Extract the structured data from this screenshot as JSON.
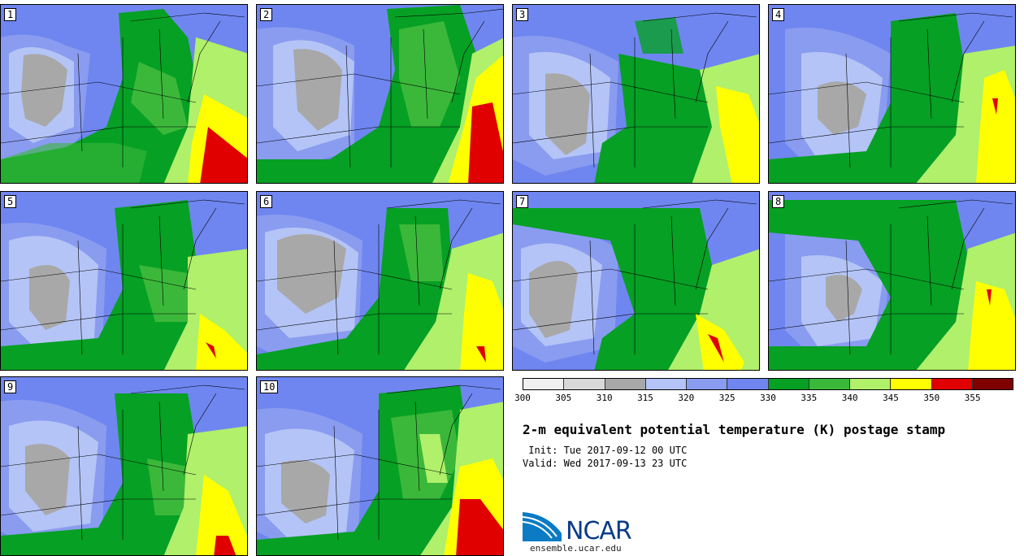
{
  "panels": [
    "1",
    "2",
    "3",
    "4",
    "5",
    "6",
    "7",
    "8",
    "9",
    "10"
  ],
  "colorbar": {
    "colors": [
      "#f0f0f0",
      "#d8d8d8",
      "#a8a8a8",
      "#b4c4f6",
      "#8a9cf0",
      "#6f86f0",
      "#06a024",
      "#3bb83a",
      "#b0f06a",
      "#ffff00",
      "#e00000",
      "#7f0000"
    ],
    "ticks": [
      "300",
      "305",
      "310",
      "315",
      "320",
      "325",
      "330",
      "335",
      "340",
      "345",
      "350",
      "355"
    ]
  },
  "title": "2-m equivalent potential temperature (K) postage stamp",
  "init": " Init: Tue 2017-09-12 00 UTC",
  "valid": "Valid: Wed 2017-09-13 23 UTC",
  "logo_text": "NCAR",
  "url": "ensemble.ucar.edu"
}
